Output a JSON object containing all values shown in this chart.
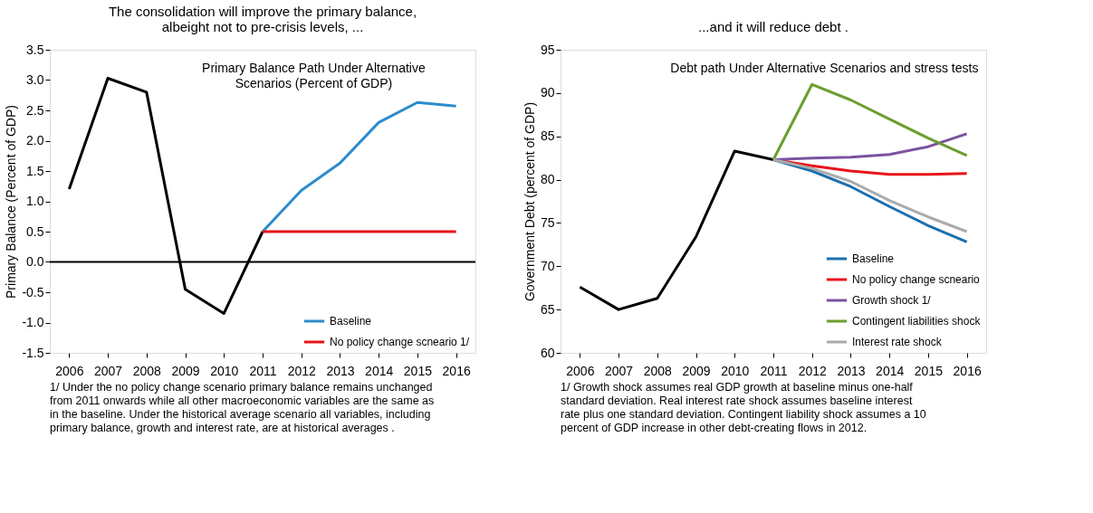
{
  "chart_data": [
    {
      "type": "line",
      "title": "The consolidation will improve the primary balance,\nalbeight not to pre-crisis levels, ...",
      "subtitle": "Primary Balance Path Under Alternative\nScenarios (Percent of GDP)",
      "ylabel": "Primary Balance (Percent of GDP)",
      "categories": [
        "2006",
        "2007",
        "2008",
        "2009",
        "2010",
        "2011",
        "2012",
        "2013",
        "2014",
        "2015",
        "2016"
      ],
      "series": [
        {
          "color": "#000000",
          "values": [
            1.2,
            3.03,
            2.8,
            -0.45,
            -0.85,
            0.5,
            null,
            null,
            null,
            null,
            null
          ]
        },
        {
          "name": "Baseline",
          "color": "#2e8bcc",
          "values": [
            null,
            null,
            null,
            null,
            null,
            0.5,
            1.18,
            1.63,
            2.3,
            2.63,
            2.57
          ]
        },
        {
          "name": "No policy change scneario 1/",
          "color": "#e8141a",
          "values": [
            null,
            null,
            null,
            null,
            null,
            0.5,
            0.5,
            0.5,
            0.5,
            0.5,
            0.5
          ]
        }
      ],
      "ylim": [
        -1.5,
        3.5
      ],
      "yticks": [
        {
          "value": -1.5,
          "label": "-1.5"
        },
        {
          "value": -1,
          "label": "-1.0"
        },
        {
          "value": -0.5,
          "label": "-0.5"
        },
        {
          "value": 0,
          "label": "0.0"
        },
        {
          "value": 0.5,
          "label": "0.5"
        },
        {
          "value": 1,
          "label": "1.0"
        },
        {
          "value": 1.5,
          "label": "1.5"
        },
        {
          "value": 2,
          "label": "2.0"
        },
        {
          "value": 2.5,
          "label": "2.5"
        },
        {
          "value": 3,
          "label": "3.0"
        },
        {
          "value": 3.5,
          "label": "3.5"
        }
      ],
      "ref_lines": [
        {
          "axis": "y",
          "value": 0,
          "color": "#000000"
        }
      ],
      "legend": "bottom right",
      "grid": false,
      "annotations": [
        "1/ Under the no policy change scenario primary balance remains unchanged",
        "from 2011 onwards while all other macroeconomic variables are the same as",
        "in the baseline. Under the historical average scenario all variables, including",
        "primary balance, growth and interest rate, are at historical averages ."
      ]
    },
    {
      "type": "line",
      "title": "...and it will reduce debt .",
      "subtitle": "Debt path Under Alternative Scenarios and stress tests",
      "ylabel": "Government Debt (percent of GDP)",
      "categories": [
        "2006",
        "2007",
        "2008",
        "2009",
        "2010",
        "2011",
        "2012",
        "2013",
        "2014",
        "2015",
        "2016"
      ],
      "series": [
        {
          "color": "#000000",
          "values": [
            67.6,
            65,
            66.3,
            73.4,
            83.3,
            82.3,
            null,
            null,
            null,
            null,
            null
          ]
        },
        {
          "name": "Baseline",
          "color": "#1a6faf",
          "values": [
            null,
            null,
            null,
            null,
            null,
            82.3,
            81,
            79.2,
            76.9,
            74.7,
            72.8
          ]
        },
        {
          "name": "No policy change scneario",
          "color": "#e8141a",
          "values": [
            null,
            null,
            null,
            null,
            null,
            82.3,
            81.6,
            81,
            80.6,
            80.6,
            80.7
          ]
        },
        {
          "name": "Growth shock 1/",
          "color": "#7b52a0",
          "values": [
            null,
            null,
            null,
            null,
            null,
            82.3,
            82.5,
            82.6,
            82.9,
            83.8,
            85.3
          ]
        },
        {
          "name": "Contingent liabilities shock",
          "color": "#6a9e2f",
          "values": [
            null,
            null,
            null,
            null,
            null,
            82.3,
            91,
            89.2,
            87,
            84.8,
            82.8
          ]
        },
        {
          "name": "Interest rate shock",
          "color": "#ababab",
          "values": [
            null,
            null,
            null,
            null,
            null,
            82.3,
            81.3,
            79.8,
            77.6,
            75.7,
            74
          ]
        }
      ],
      "ylim": [
        60,
        95
      ],
      "yticks": [
        60,
        65,
        70,
        75,
        80,
        85,
        90,
        95
      ],
      "legend": "bottom right",
      "grid": false,
      "annotations": [
        "1/ Growth shock assumes real GDP growth at baseline minus one-half",
        "standard deviation. Real interest rate shock assumes baseline interest",
        "rate plus one standard deviation. Contingent liability shock assumes a 10",
        "percent of GDP increase in other debt-creating flows in 2012."
      ]
    }
  ]
}
